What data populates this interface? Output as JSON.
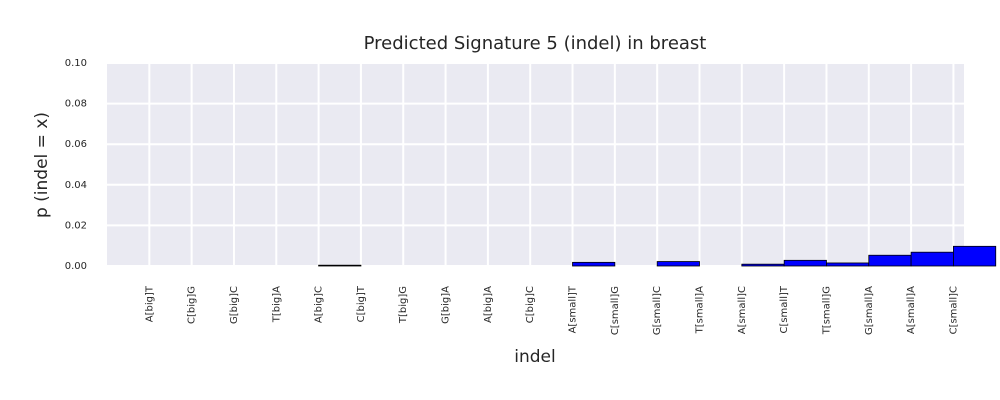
{
  "chart_data": {
    "type": "bar",
    "title": "Predicted Signature 5 (indel) in breast",
    "xlabel": "indel",
    "ylabel": "p (indel = x)",
    "ylim": [
      0,
      0.1
    ],
    "yticks": [
      "0.00",
      "0.02",
      "0.04",
      "0.06",
      "0.08",
      "0.10"
    ],
    "categories": [
      "A[big]T",
      "C[big]G",
      "G[big]C",
      "T[big]A",
      "A[big]C",
      "C[big]T",
      "T[big]G",
      "G[big]A",
      "A[big]A",
      "C[big]C",
      "A[small]T",
      "C[small]G",
      "G[small]C",
      "T[small]A",
      "A[small]C",
      "C[small]T",
      "T[small]G",
      "G[small]A",
      "A[small]A",
      "C[small]C"
    ],
    "values": [
      0,
      0,
      0,
      0,
      0.0004,
      0,
      0,
      0,
      0,
      0,
      0.0018,
      0,
      0.0022,
      0,
      0.0009,
      0.0028,
      0.0015,
      0.0053,
      0.0068,
      0.0097
    ],
    "bar_color": "#0000ff",
    "background_color": "#eaeaf2",
    "grid": true,
    "legend": "none"
  }
}
